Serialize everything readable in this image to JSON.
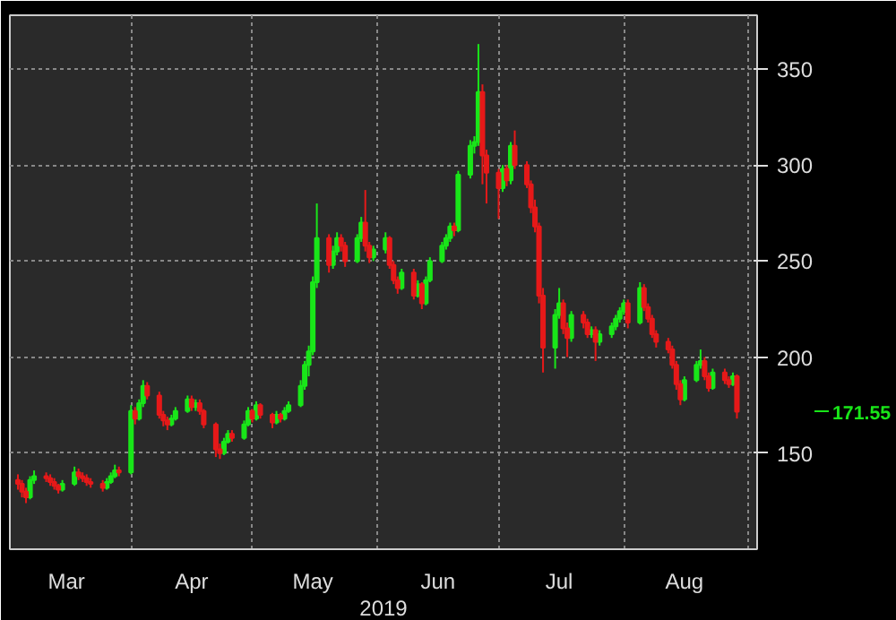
{
  "chart_data": {
    "type": "candlestick",
    "xlabel": "2019",
    "x": [
      "2019-03-04",
      "2019-03-05",
      "2019-03-06",
      "2019-03-07",
      "2019-03-08",
      "2019-03-11",
      "2019-03-12",
      "2019-03-13",
      "2019-03-14",
      "2019-03-15",
      "2019-03-18",
      "2019-03-19",
      "2019-03-20",
      "2019-03-21",
      "2019-03-22",
      "2019-03-25",
      "2019-03-26",
      "2019-03-27",
      "2019-03-28",
      "2019-03-29",
      "2019-04-01",
      "2019-04-02",
      "2019-04-03",
      "2019-04-04",
      "2019-04-05",
      "2019-04-08",
      "2019-04-09",
      "2019-04-10",
      "2019-04-11",
      "2019-04-12",
      "2019-04-15",
      "2019-04-16",
      "2019-04-17",
      "2019-04-18",
      "2019-04-19",
      "2019-04-22",
      "2019-04-23",
      "2019-04-24",
      "2019-04-25",
      "2019-04-26",
      "2019-04-29",
      "2019-04-30",
      "2019-05-01",
      "2019-05-02",
      "2019-05-03",
      "2019-05-06",
      "2019-05-07",
      "2019-05-08",
      "2019-05-09",
      "2019-05-10",
      "2019-05-13",
      "2019-05-14",
      "2019-05-15",
      "2019-05-16",
      "2019-05-17",
      "2019-05-20",
      "2019-05-21",
      "2019-05-22",
      "2019-05-23",
      "2019-05-24",
      "2019-05-27",
      "2019-05-28",
      "2019-05-29",
      "2019-05-30",
      "2019-05-31",
      "2019-06-03",
      "2019-06-04",
      "2019-06-05",
      "2019-06-06",
      "2019-06-07",
      "2019-06-10",
      "2019-06-11",
      "2019-06-12",
      "2019-06-13",
      "2019-06-14",
      "2019-06-17",
      "2019-06-18",
      "2019-06-19",
      "2019-06-20",
      "2019-06-21",
      "2019-06-24",
      "2019-06-25",
      "2019-06-26",
      "2019-06-27",
      "2019-06-28",
      "2019-07-01",
      "2019-07-02",
      "2019-07-03",
      "2019-07-04",
      "2019-07-05",
      "2019-07-08",
      "2019-07-09",
      "2019-07-10",
      "2019-07-11",
      "2019-07-12",
      "2019-07-15",
      "2019-07-16",
      "2019-07-17",
      "2019-07-18",
      "2019-07-19",
      "2019-07-22",
      "2019-07-23",
      "2019-07-24",
      "2019-07-25",
      "2019-07-26",
      "2019-07-29",
      "2019-07-30",
      "2019-07-31",
      "2019-08-01",
      "2019-08-02",
      "2019-08-05",
      "2019-08-06",
      "2019-08-07",
      "2019-08-08",
      "2019-08-09",
      "2019-08-12",
      "2019-08-13",
      "2019-08-14",
      "2019-08-15",
      "2019-08-16",
      "2019-08-19",
      "2019-08-20",
      "2019-08-21",
      "2019-08-22",
      "2019-08-23",
      "2019-08-26",
      "2019-08-27",
      "2019-08-28",
      "2019-08-29"
    ],
    "ohlc": [
      [
        136,
        139,
        131,
        134
      ],
      [
        134,
        136,
        127,
        130
      ],
      [
        130,
        132,
        124,
        127
      ],
      [
        127,
        138,
        126,
        136
      ],
      [
        136,
        141,
        134,
        138
      ],
      [
        138,
        140,
        135,
        137
      ],
      [
        137,
        139,
        133,
        135
      ],
      [
        135,
        137,
        131,
        133
      ],
      [
        133,
        134,
        129,
        131
      ],
      [
        131,
        136,
        130,
        134
      ],
      [
        134,
        143,
        133,
        140
      ],
      [
        140,
        142,
        136,
        138
      ],
      [
        138,
        140,
        135,
        137
      ],
      [
        137,
        139,
        133,
        135
      ],
      [
        135,
        137,
        132,
        134
      ],
      [
        134,
        136,
        130,
        132
      ],
      [
        132,
        137,
        131,
        135
      ],
      [
        135,
        140,
        134,
        138
      ],
      [
        138,
        144,
        137,
        141
      ],
      [
        141,
        143,
        138,
        140
      ],
      [
        140,
        175,
        139,
        172
      ],
      [
        172,
        174,
        165,
        168
      ],
      [
        168,
        178,
        167,
        176
      ],
      [
        176,
        188,
        174,
        185
      ],
      [
        185,
        187,
        178,
        180
      ],
      [
        180,
        182,
        168,
        170
      ],
      [
        170,
        172,
        164,
        167
      ],
      [
        167,
        169,
        162,
        165
      ],
      [
        165,
        170,
        164,
        168
      ],
      [
        168,
        174,
        167,
        172
      ],
      [
        172,
        180,
        171,
        178
      ],
      [
        178,
        180,
        172,
        174
      ],
      [
        174,
        178,
        172,
        176
      ],
      [
        176,
        178,
        170,
        172
      ],
      [
        172,
        173,
        163,
        165
      ],
      [
        165,
        166,
        148,
        152
      ],
      [
        152,
        155,
        147,
        150
      ],
      [
        150,
        158,
        149,
        156
      ],
      [
        156,
        162,
        155,
        160
      ],
      [
        160,
        162,
        156,
        158
      ],
      [
        158,
        167,
        157,
        165
      ],
      [
        165,
        174,
        164,
        172
      ],
      [
        172,
        173,
        166,
        168
      ],
      [
        168,
        177,
        167,
        175
      ],
      [
        175,
        176,
        168,
        170
      ],
      [
        170,
        171,
        163,
        166
      ],
      [
        166,
        172,
        165,
        170
      ],
      [
        170,
        171,
        166,
        168
      ],
      [
        168,
        174,
        167,
        172
      ],
      [
        172,
        177,
        171,
        175
      ],
      [
        175,
        188,
        174,
        185
      ],
      [
        185,
        198,
        183,
        196
      ],
      [
        196,
        206,
        190,
        203
      ],
      [
        203,
        242,
        201,
        239
      ],
      [
        239,
        280,
        236,
        262
      ],
      [
        262,
        264,
        244,
        248
      ],
      [
        248,
        258,
        246,
        255
      ],
      [
        255,
        265,
        253,
        262
      ],
      [
        262,
        264,
        255,
        258
      ],
      [
        258,
        260,
        247,
        250
      ],
      [
        250,
        264,
        249,
        262
      ],
      [
        262,
        273,
        260,
        270
      ],
      [
        270,
        287,
        255,
        258
      ],
      [
        258,
        260,
        249,
        252
      ],
      [
        252,
        258,
        250,
        256
      ],
      [
        256,
        265,
        254,
        262
      ],
      [
        262,
        263,
        246,
        248
      ],
      [
        248,
        250,
        238,
        240
      ],
      [
        240,
        242,
        233,
        236
      ],
      [
        236,
        246,
        235,
        244
      ],
      [
        244,
        246,
        230,
        232
      ],
      [
        232,
        240,
        231,
        238
      ],
      [
        238,
        239,
        225,
        228
      ],
      [
        228,
        242,
        227,
        240
      ],
      [
        240,
        252,
        239,
        250
      ],
      [
        250,
        260,
        249,
        258
      ],
      [
        258,
        264,
        256,
        262
      ],
      [
        262,
        270,
        260,
        268
      ],
      [
        268,
        270,
        263,
        266
      ],
      [
        266,
        297,
        265,
        295
      ],
      [
        295,
        313,
        293,
        310
      ],
      [
        310,
        315,
        306,
        312
      ],
      [
        312,
        363,
        310,
        338
      ],
      [
        338,
        342,
        290,
        305
      ],
      [
        305,
        308,
        280,
        296
      ],
      [
        296,
        298,
        272,
        288
      ],
      [
        288,
        300,
        286,
        298
      ],
      [
        298,
        300,
        289,
        292
      ],
      [
        292,
        312,
        290,
        310
      ],
      [
        310,
        318,
        298,
        300
      ],
      [
        300,
        302,
        288,
        290
      ],
      [
        290,
        292,
        275,
        278
      ],
      [
        278,
        282,
        265,
        268
      ],
      [
        268,
        270,
        228,
        232
      ],
      [
        232,
        236,
        192,
        205
      ],
      [
        205,
        225,
        194,
        222
      ],
      [
        222,
        236,
        220,
        228
      ],
      [
        228,
        230,
        212,
        215
      ],
      [
        215,
        218,
        200,
        210
      ],
      [
        210,
        224,
        208,
        222
      ],
      [
        222,
        224,
        215,
        218
      ],
      [
        218,
        220,
        210,
        212
      ],
      [
        212,
        216,
        210,
        214
      ],
      [
        214,
        216,
        198,
        208
      ],
      [
        208,
        214,
        206,
        212
      ],
      [
        212,
        218,
        210,
        216
      ],
      [
        216,
        222,
        214,
        220
      ],
      [
        220,
        226,
        218,
        224
      ],
      [
        224,
        230,
        222,
        228
      ],
      [
        228,
        230,
        215,
        218
      ],
      [
        218,
        239,
        217,
        236
      ],
      [
        236,
        238,
        224,
        226
      ],
      [
        226,
        228,
        218,
        220
      ],
      [
        220,
        222,
        210,
        212
      ],
      [
        212,
        214,
        205,
        208
      ],
      [
        208,
        210,
        202,
        204
      ],
      [
        204,
        206,
        194,
        196
      ],
      [
        196,
        198,
        183,
        186
      ],
      [
        186,
        188,
        175,
        178
      ],
      [
        178,
        190,
        177,
        188
      ],
      [
        188,
        198,
        187,
        196
      ],
      [
        196,
        204,
        194,
        198
      ],
      [
        198,
        200,
        188,
        190
      ],
      [
        190,
        192,
        182,
        184
      ],
      [
        184,
        194,
        183,
        192
      ],
      [
        192,
        194,
        186,
        188
      ],
      [
        188,
        190,
        184,
        186
      ],
      [
        186,
        192,
        185,
        190
      ],
      [
        190,
        191,
        168,
        171.55
      ]
    ],
    "xlim": [
      "2019-03-02",
      "2019-09-03"
    ],
    "xticks": [
      {
        "value": "2019-04-01",
        "label": null
      },
      {
        "value": "2019-05-01",
        "label": null
      },
      {
        "value": "2019-06-01",
        "label": null
      },
      {
        "value": "2019-07-01",
        "label": null
      },
      {
        "value": "2019-08-01",
        "label": null
      },
      {
        "value": "2019-09-01",
        "label": null
      },
      {
        "value": "2019-03-16",
        "label": "Mar"
      },
      {
        "value": "2019-04-16",
        "label": "Apr"
      },
      {
        "value": "2019-05-16",
        "label": "May"
      },
      {
        "value": "2019-06-16",
        "label": "Jun"
      },
      {
        "value": "2019-07-16",
        "label": "Jul"
      },
      {
        "value": "2019-08-16",
        "label": "Aug"
      }
    ],
    "ylim": [
      100,
      378
    ],
    "yticks": [
      150,
      200,
      250,
      300,
      350
    ],
    "grid": true,
    "annotations": [
      "171.55"
    ]
  }
}
